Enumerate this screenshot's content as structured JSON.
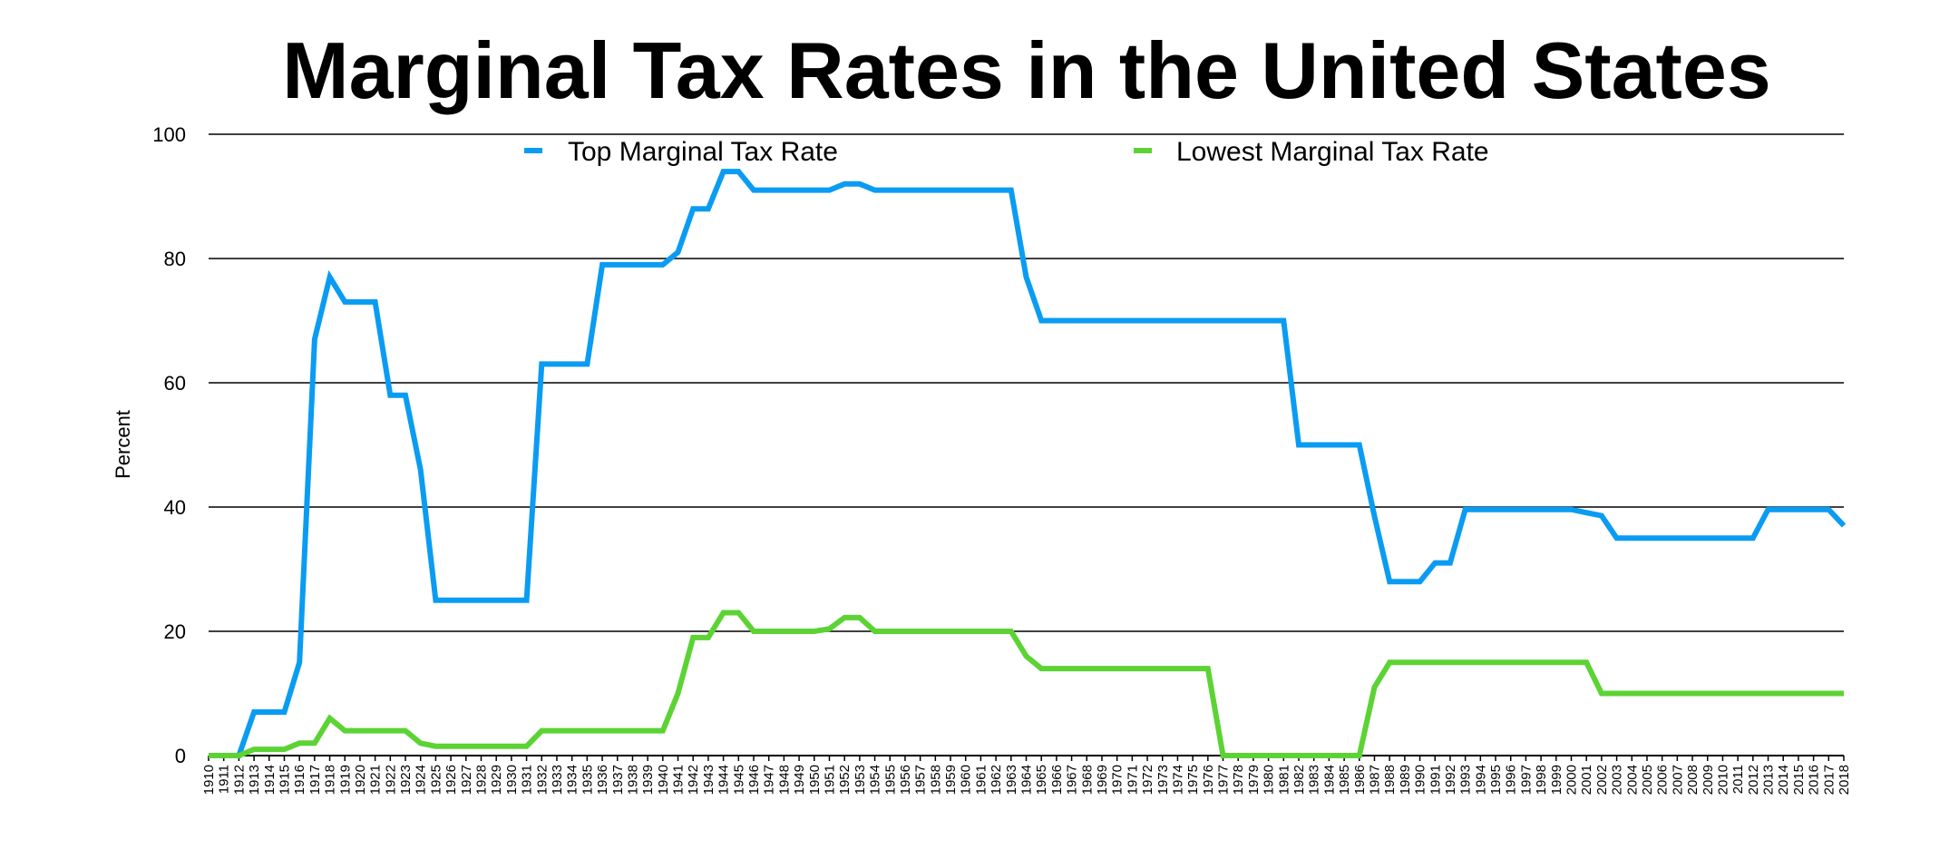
{
  "chart_data": {
    "type": "line",
    "title": "Marginal Tax Rates in the United States",
    "xlabel": "",
    "ylabel": "Percent",
    "ylim": [
      0,
      100
    ],
    "yticks": [
      0,
      20,
      40,
      60,
      80,
      100
    ],
    "grid": true,
    "legend_position": "top",
    "x": [
      1910,
      1911,
      1912,
      1913,
      1914,
      1915,
      1916,
      1917,
      1918,
      1919,
      1920,
      1921,
      1922,
      1923,
      1924,
      1925,
      1926,
      1927,
      1928,
      1929,
      1930,
      1931,
      1932,
      1933,
      1934,
      1935,
      1936,
      1937,
      1938,
      1939,
      1940,
      1941,
      1942,
      1943,
      1944,
      1945,
      1946,
      1947,
      1948,
      1949,
      1950,
      1951,
      1952,
      1953,
      1954,
      1955,
      1956,
      1957,
      1958,
      1959,
      1960,
      1961,
      1962,
      1963,
      1964,
      1965,
      1966,
      1967,
      1968,
      1969,
      1970,
      1971,
      1972,
      1973,
      1974,
      1975,
      1976,
      1977,
      1978,
      1979,
      1980,
      1981,
      1982,
      1983,
      1984,
      1985,
      1986,
      1987,
      1988,
      1989,
      1990,
      1991,
      1992,
      1993,
      1994,
      1995,
      1996,
      1997,
      1998,
      1999,
      2000,
      2001,
      2002,
      2003,
      2004,
      2005,
      2006,
      2007,
      2008,
      2009,
      2010,
      2011,
      2012,
      2013,
      2014,
      2015,
      2016,
      2017,
      2018
    ],
    "series": [
      {
        "name": "Top Marginal Tax Rate",
        "color": "#0a9cf2",
        "values": [
          0,
          0,
          0,
          7,
          7,
          7,
          15,
          67,
          77,
          73,
          73,
          73,
          58,
          58,
          46,
          25,
          25,
          25,
          25,
          25,
          25,
          25,
          63,
          63,
          63,
          63,
          79,
          79,
          79,
          79,
          79,
          81,
          88,
          88,
          94,
          94,
          91,
          91,
          91,
          91,
          91,
          91,
          92,
          92,
          91,
          91,
          91,
          91,
          91,
          91,
          91,
          91,
          91,
          91,
          77,
          70,
          70,
          70,
          70,
          70,
          70,
          70,
          70,
          70,
          70,
          70,
          70,
          70,
          70,
          70,
          70,
          70,
          50,
          50,
          50,
          50,
          50,
          38.5,
          28,
          28,
          28,
          31,
          31,
          39.6,
          39.6,
          39.6,
          39.6,
          39.6,
          39.6,
          39.6,
          39.6,
          39.1,
          38.6,
          35,
          35,
          35,
          35,
          35,
          35,
          35,
          35,
          35,
          35,
          39.6,
          39.6,
          39.6,
          39.6,
          39.6,
          37
        ]
      },
      {
        "name": "Lowest Marginal Tax Rate",
        "color": "#5cd334",
        "values": [
          0,
          0,
          0,
          1,
          1,
          1,
          2,
          2,
          6,
          4,
          4,
          4,
          4,
          4,
          2,
          1.5,
          1.5,
          1.5,
          1.5,
          1.5,
          1.5,
          1.5,
          4,
          4,
          4,
          4,
          4,
          4,
          4,
          4,
          4,
          10,
          19,
          19,
          23,
          23,
          20,
          20,
          20,
          20,
          20,
          20.4,
          22.2,
          22.2,
          20,
          20,
          20,
          20,
          20,
          20,
          20,
          20,
          20,
          20,
          16,
          14,
          14,
          14,
          14,
          14,
          14,
          14,
          14,
          14,
          14,
          14,
          14,
          0,
          0,
          0,
          0,
          0,
          0,
          0,
          0,
          0,
          0,
          11,
          15,
          15,
          15,
          15,
          15,
          15,
          15,
          15,
          15,
          15,
          15,
          15,
          15,
          15,
          10,
          10,
          10,
          10,
          10,
          10,
          10,
          10,
          10,
          10,
          10,
          10,
          10,
          10,
          10,
          10,
          10
        ]
      }
    ]
  }
}
